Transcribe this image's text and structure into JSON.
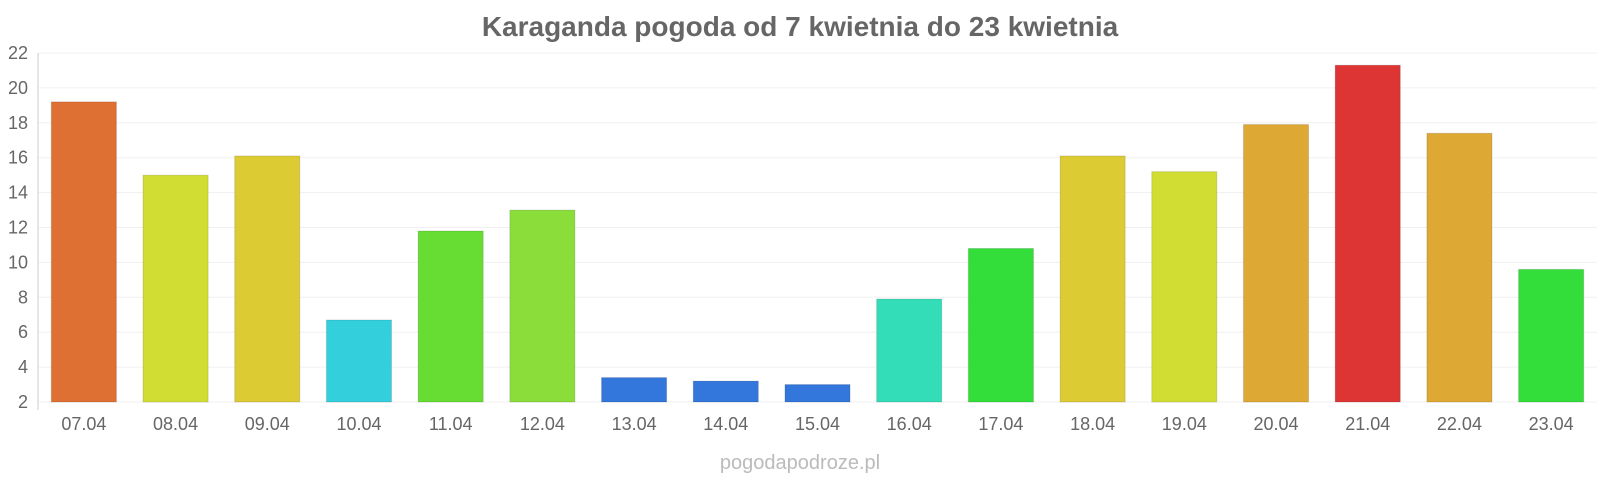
{
  "chart_data": {
    "type": "bar",
    "title": "Karaganda pogoda od 7 kwietnia do 23 kwietnia",
    "xlabel": "",
    "ylabel": "",
    "ylim": [
      2,
      22
    ],
    "yticks": [
      2,
      4,
      6,
      8,
      10,
      12,
      14,
      16,
      18,
      20,
      22
    ],
    "grid": true,
    "categories": [
      "07.04",
      "08.04",
      "09.04",
      "10.04",
      "11.04",
      "12.04",
      "13.04",
      "14.04",
      "15.04",
      "16.04",
      "17.04",
      "18.04",
      "19.04",
      "20.04",
      "21.04",
      "22.04",
      "23.04"
    ],
    "values": [
      19.2,
      15.0,
      16.1,
      6.7,
      11.8,
      13.0,
      3.4,
      3.2,
      3.0,
      7.9,
      10.8,
      16.1,
      15.2,
      17.9,
      21.3,
      17.4,
      9.6
    ],
    "colors": [
      "#df7033",
      "#d1dd33",
      "#ddcb33",
      "#33cfdc",
      "#67dc33",
      "#8bdd3a",
      "#3376dc",
      "#3376dc",
      "#3376dc",
      "#33ddb7",
      "#33dd3a",
      "#ddcb33",
      "#d1dd33",
      "#dda833",
      "#dd3533",
      "#dda833",
      "#33dd3a"
    ]
  },
  "watermark": "pogodapodroze.pl"
}
